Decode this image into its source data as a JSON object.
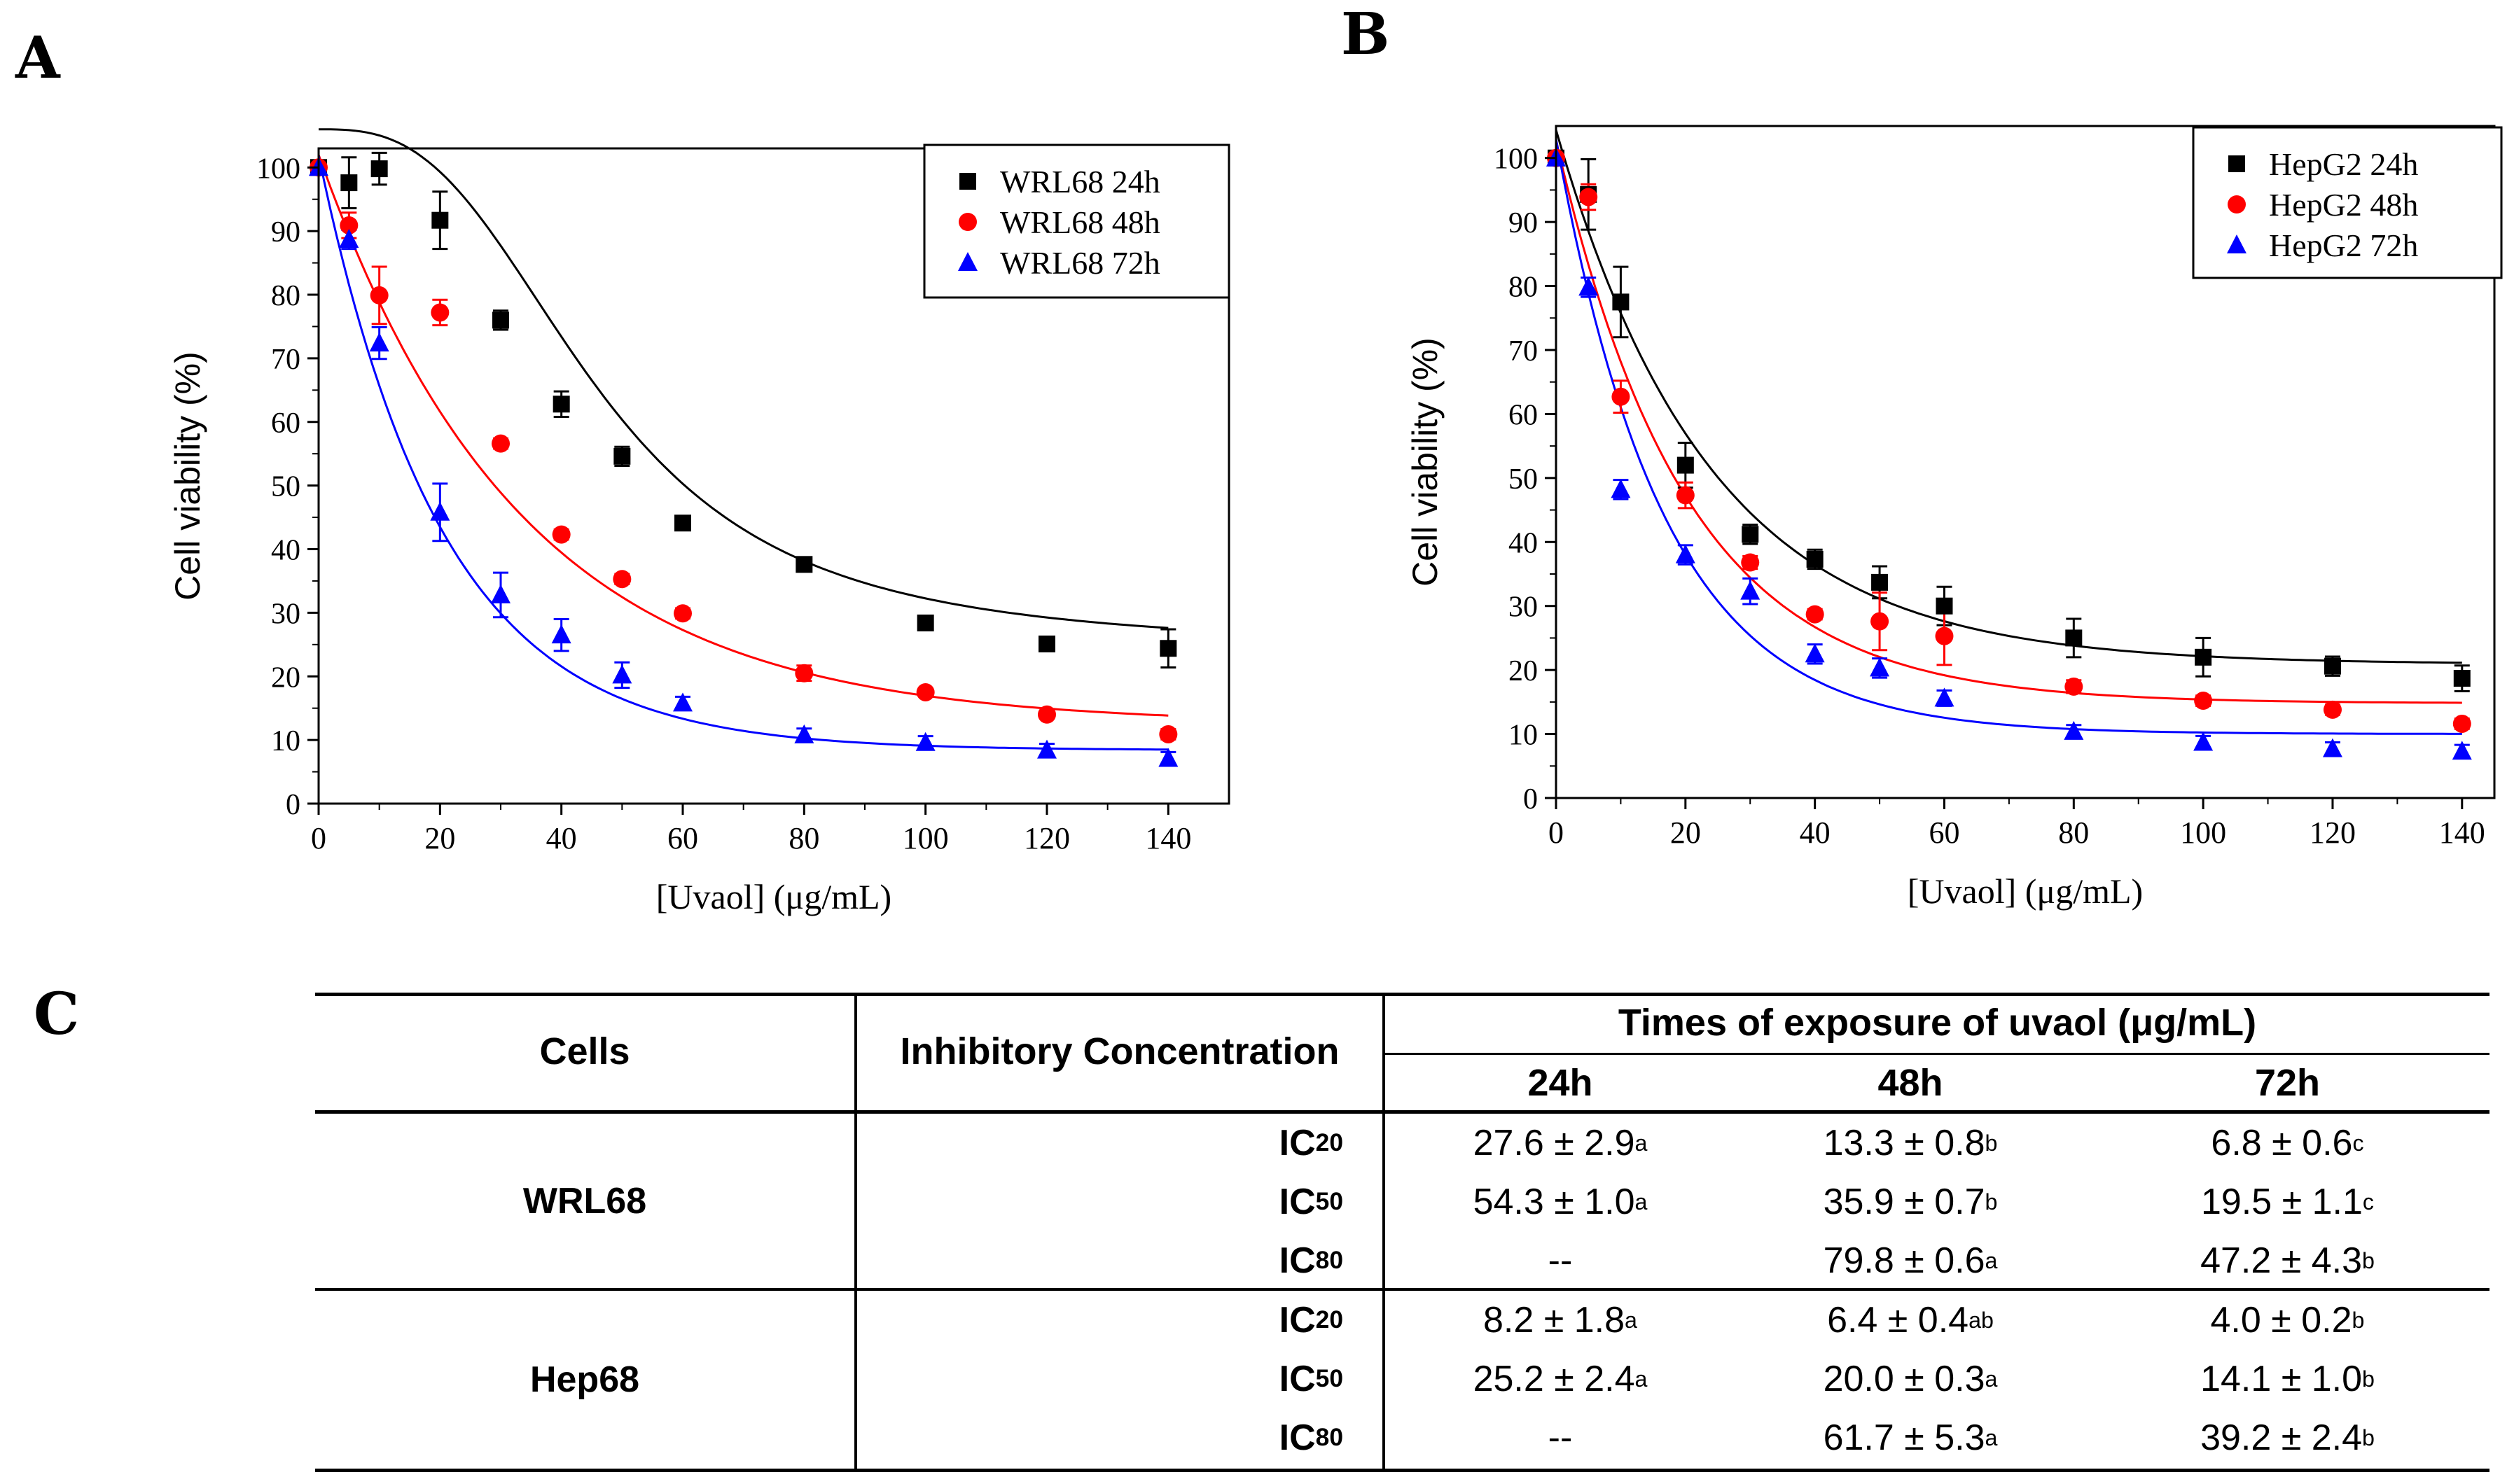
{
  "panel_labels": {
    "a": "A",
    "b": "B",
    "c": "C"
  },
  "chart_data": [
    {
      "type": "scatter",
      "title": "",
      "xlabel": "[Uvaol] (μg/mL)",
      "ylabel": "Cell viability (%)",
      "xlim": [
        0,
        150
      ],
      "ylim": [
        0,
        103
      ],
      "xticks": [
        0,
        20,
        40,
        60,
        80,
        100,
        120,
        140
      ],
      "yticks": [
        0,
        10,
        20,
        30,
        40,
        50,
        60,
        70,
        80,
        90,
        100
      ],
      "legend_position": "top-right",
      "series": [
        {
          "name": "WRL68 24h",
          "color": "#000000",
          "marker": "square",
          "x": [
            0,
            5,
            10,
            20,
            30,
            40,
            50,
            60,
            80,
            100,
            120,
            140
          ],
          "y": [
            100,
            97.6,
            99.8,
            91.7,
            76,
            62.8,
            54.6,
            44.1,
            37.6,
            28.4,
            25.1,
            24.4
          ],
          "err": [
            0,
            4,
            2.5,
            4.5,
            1.5,
            2,
            1.5,
            1,
            0.8,
            1,
            1,
            3
          ],
          "fit": {
            "A1": 106,
            "A2": 24.5,
            "x0": 46,
            "p": 2.9
          }
        },
        {
          "name": "WRL68 48h",
          "color": "#ff0000",
          "marker": "circle",
          "x": [
            0,
            5,
            10,
            20,
            30,
            40,
            50,
            60,
            80,
            100,
            120,
            140
          ],
          "y": [
            100,
            90.9,
            79.9,
            77.2,
            56.6,
            42.3,
            35.3,
            29.9,
            20.5,
            17.5,
            14.0,
            10.9
          ],
          "err": [
            0,
            2,
            4.5,
            2,
            0.8,
            0.8,
            0.8,
            0.8,
            1.2,
            0.6,
            0.6,
            0.8
          ],
          "fit": {
            "y0": 12.5,
            "A": 89.5,
            "k": 0.03
          }
        },
        {
          "name": "WRL68 72h",
          "color": "#0000ff",
          "marker": "triangle",
          "x": [
            0,
            5,
            10,
            20,
            30,
            40,
            50,
            60,
            80,
            100,
            120,
            140
          ],
          "y": [
            100,
            88.7,
            72.4,
            45.8,
            32.8,
            26.5,
            20.2,
            15.8,
            10.8,
            9.6,
            8.4,
            7.1
          ],
          "err": [
            0,
            1.5,
            2.5,
            4.5,
            3.5,
            2.5,
            2,
            1,
            1,
            1,
            1,
            1
          ],
          "fit": {
            "y0": 8.4,
            "A": 93.5,
            "k": 0.049
          }
        }
      ]
    },
    {
      "type": "scatter",
      "title": "",
      "xlabel": "[Uvaol] (μg/mL)",
      "ylabel": "Cell viability (%)",
      "xlim": [
        0,
        145
      ],
      "ylim": [
        0,
        105
      ],
      "xticks": [
        0,
        20,
        40,
        60,
        80,
        100,
        120,
        140
      ],
      "yticks": [
        0,
        10,
        20,
        30,
        40,
        50,
        60,
        70,
        80,
        90,
        100
      ],
      "legend_position": "top-right",
      "series": [
        {
          "name": "HepG2 24h",
          "color": "#000000",
          "marker": "square",
          "x": [
            0,
            5,
            10,
            20,
            30,
            40,
            50,
            60,
            80,
            100,
            120,
            140
          ],
          "y": [
            100,
            94.3,
            77.5,
            52.0,
            41.2,
            37.3,
            33.7,
            30.0,
            25.0,
            22.0,
            20.6,
            18.7
          ],
          "err": [
            0,
            5.5,
            5.5,
            3.5,
            1.5,
            1.5,
            2.5,
            3,
            3,
            3,
            1.5,
            2
          ],
          "fit": {
            "y0": 20.9,
            "A": 83.5,
            "k": 0.042
          }
        },
        {
          "name": "HepG2 48h",
          "color": "#ff0000",
          "marker": "circle",
          "x": [
            0,
            5,
            10,
            20,
            30,
            40,
            50,
            60,
            80,
            100,
            120,
            140
          ],
          "y": [
            100,
            93.9,
            62.7,
            47.3,
            36.8,
            28.7,
            27.6,
            25.3,
            17.4,
            15.2,
            13.8,
            11.6
          ],
          "err": [
            0,
            2,
            2.5,
            2,
            1,
            0.8,
            4.5,
            4.5,
            1,
            0.8,
            0.8,
            0.8
          ],
          "fit": {
            "y0": 14.8,
            "A": 88,
            "k": 0.05
          }
        },
        {
          "name": "HepG2 72h",
          "color": "#0000ff",
          "marker": "triangle",
          "x": [
            0,
            5,
            10,
            20,
            30,
            40,
            50,
            60,
            80,
            100,
            120,
            140
          ],
          "y": [
            100,
            79.8,
            48.2,
            38.0,
            32.3,
            22.5,
            20.3,
            15.6,
            10.4,
            8.7,
            7.7,
            7.3
          ],
          "err": [
            0,
            1.5,
            1.5,
            1.5,
            2,
            1.5,
            1.5,
            1.2,
            1,
            1,
            1,
            1
          ],
          "fit": {
            "y0": 10.0,
            "A": 93,
            "k": 0.06
          }
        }
      ]
    }
  ],
  "table": {
    "headers": {
      "cells": "Cells",
      "inhibitory": "Inhibitory Concentration",
      "times": "Times of exposure of uvaol (μg/mL)",
      "t24": "24h",
      "t48": "48h",
      "t72": "72h"
    },
    "groups": [
      {
        "cell": "WRL68",
        "rows": [
          {
            "ic": "IC",
            "ic_sub": "20",
            "v24": "27.6 ± 2.9",
            "s24": "a",
            "v48": "13.3 ± 0.8",
            "s48": "b",
            "v72": "6.8 ± 0.6",
            "s72": "c"
          },
          {
            "ic": "IC",
            "ic_sub": "50",
            "v24": "54.3 ± 1.0",
            "s24": "a",
            "v48": "35.9 ± 0.7",
            "s48": "b",
            "v72": "19.5 ± 1.1",
            "s72": "c"
          },
          {
            "ic": "IC",
            "ic_sub": "80",
            "v24": "--",
            "s24": "",
            "v48": "79.8 ± 0.6",
            "s48": "a",
            "v72": "47.2 ± 4.3",
            "s72": "b"
          }
        ]
      },
      {
        "cell": "Hep68",
        "rows": [
          {
            "ic": "IC",
            "ic_sub": "20",
            "v24": "8.2 ± 1.8",
            "s24": "a",
            "v48": "6.4 ± 0.4",
            "s48": "ab",
            "v72": "4.0 ± 0.2",
            "s72": "b"
          },
          {
            "ic": "IC",
            "ic_sub": "50",
            "v24": "25.2 ± 2.4",
            "s24": "a",
            "v48": "20.0 ± 0.3",
            "s48": "a",
            "v72": "14.1 ± 1.0",
            "s72": "b"
          },
          {
            "ic": "IC",
            "ic_sub": "80",
            "v24": "--",
            "s24": "",
            "v48": "61.7 ± 5.3",
            "s48": "a",
            "v72": "39.2 ± 2.4",
            "s72": "b"
          }
        ]
      }
    ]
  }
}
